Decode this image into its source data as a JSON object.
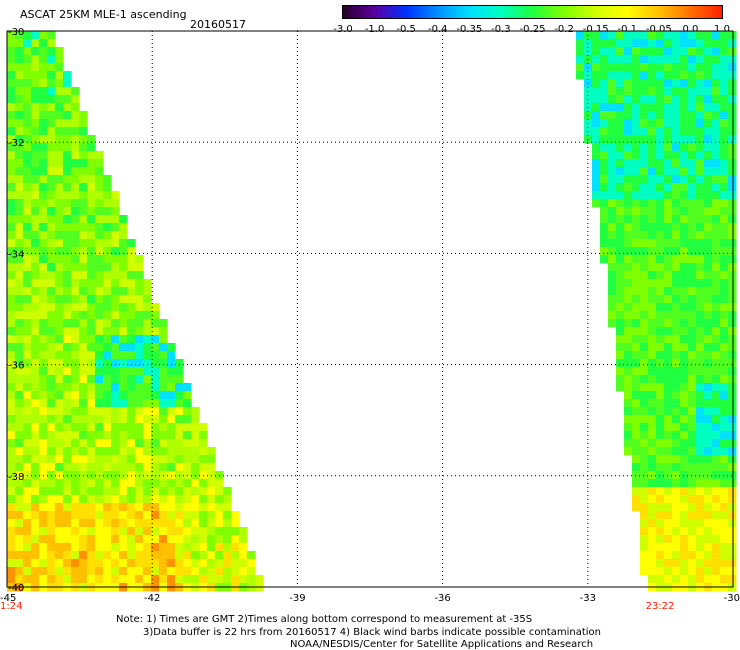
{
  "header": {
    "title": "ASCAT 25KM MLE-1 ascending",
    "date": "20160517"
  },
  "colorbar": {
    "labels": [
      "-3.0",
      "-1.0",
      "-0.5",
      "-0.4",
      "-0.35",
      "-0.3",
      "-0.25",
      "-0.2",
      "-0.15",
      "-0.1",
      "-0.05",
      "0.0",
      "1.0"
    ],
    "colors": [
      "#2a0028",
      "#5a00a0",
      "#0030ff",
      "#0090ff",
      "#00e0ff",
      "#00ffc0",
      "#20ff40",
      "#80ff00",
      "#d0ff00",
      "#ffff00",
      "#ffc000",
      "#ff7000",
      "#ff2000"
    ]
  },
  "map": {
    "lat_ticks": [
      "-30",
      "-32",
      "-34",
      "-36",
      "-38",
      "-40"
    ],
    "lon_ticks": [
      "-45",
      "-42",
      "-39",
      "-36",
      "-33",
      "-30"
    ],
    "lon_range": [
      -45,
      -30
    ],
    "lat_range": [
      -30,
      -40
    ],
    "pass_times": [
      "1:24",
      "23:22"
    ],
    "time_color": "#ff2000"
  },
  "notes": {
    "line1": "Note: 1) Times are GMT 2)Times along bottom correspond to measurement at -35S",
    "line2": "3)Data buffer is 22 hrs from 20160517 4) Black wind barbs indicate possible contamination",
    "line3": "NOAA/NESDIS/Center for Satellite Applications and Research"
  }
}
